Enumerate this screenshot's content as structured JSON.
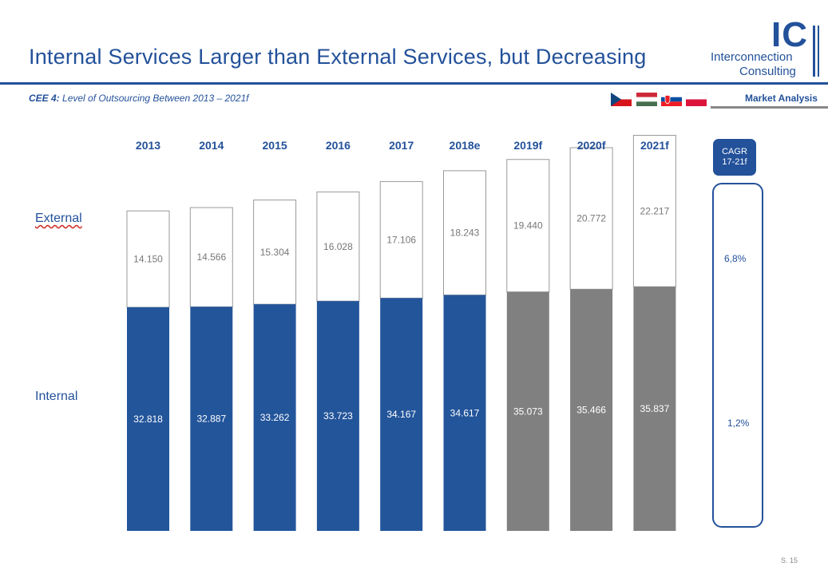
{
  "header": {
    "title": "Internal Services Larger than External Services, but Decreasing",
    "subtitle_prefix": "CEE 4:",
    "subtitle_rest": " Level of Outsourcing Between 2013 – 2021f",
    "section": "Market Analysis",
    "logo_mark": "IC",
    "logo_line1": "Interconnection",
    "logo_line2": "Consulting"
  },
  "flags": [
    "czech-flag",
    "hungary-flag",
    "slovakia-flag",
    "poland-flag"
  ],
  "labels": {
    "external": "External",
    "internal": "Internal"
  },
  "cagr": {
    "header": "CAGR 17-21f",
    "external": "6,8%",
    "internal": "1,2%"
  },
  "footer": {
    "page": "S. 15"
  },
  "colors": {
    "brand": "#23519a",
    "internal_actual": "#23559b",
    "internal_forecast": "#808080",
    "external": "#ffffff",
    "grid_line": "#999999"
  },
  "chart_data": {
    "type": "bar",
    "stacked": true,
    "categories": [
      "2013",
      "2014",
      "2015",
      "2016",
      "2017",
      "2018e",
      "2019f",
      "2020f",
      "2021f"
    ],
    "forecast_from_index": 6,
    "series": [
      {
        "name": "Internal",
        "values": [
          32818,
          32887,
          33262,
          33723,
          34167,
          34617,
          35073,
          35466,
          35837
        ],
        "labels": [
          "32.818",
          "32.887",
          "33.262",
          "33.723",
          "34.167",
          "34.617",
          "35.073",
          "35.466",
          "35.837"
        ]
      },
      {
        "name": "External",
        "values": [
          14150,
          14566,
          15304,
          16028,
          17106,
          18243,
          19440,
          20772,
          22217
        ],
        "labels": [
          "14.150",
          "14.566",
          "15.304",
          "16.028",
          "17.106",
          "18.243",
          "19.440",
          "20.772",
          "22.217"
        ]
      }
    ],
    "title": "",
    "xlabel": "",
    "ylabel": "",
    "ylim": [
      0,
      58000
    ],
    "grid": false,
    "legend": "none"
  }
}
